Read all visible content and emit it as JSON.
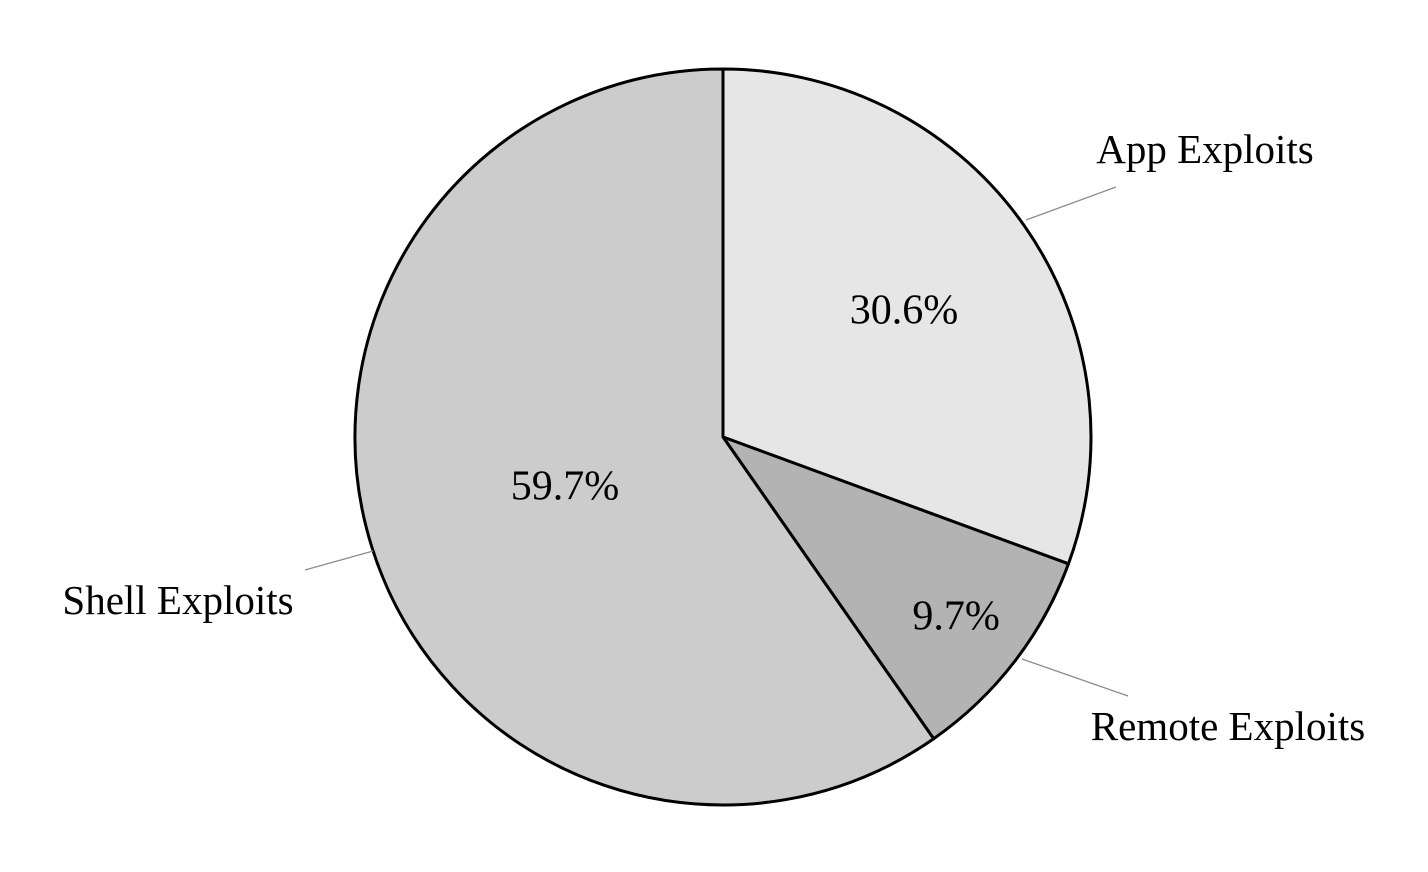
{
  "chart_data": {
    "type": "pie",
    "title": "",
    "start": "top",
    "direction": "clockwise",
    "slices": [
      {
        "label": "App Exploits",
        "value": 30.6,
        "value_label": "30.6%",
        "color": "#e6e6e6"
      },
      {
        "label": "Remote Exploits",
        "value": 9.7,
        "value_label": "9.7%",
        "color": "#b3b3b3"
      },
      {
        "label": "Shell Exploits",
        "value": 59.7,
        "value_label": "59.7%",
        "color": "#cccccc"
      }
    ],
    "outline_color": "#000000",
    "leader_color": "#8c8c8c"
  }
}
